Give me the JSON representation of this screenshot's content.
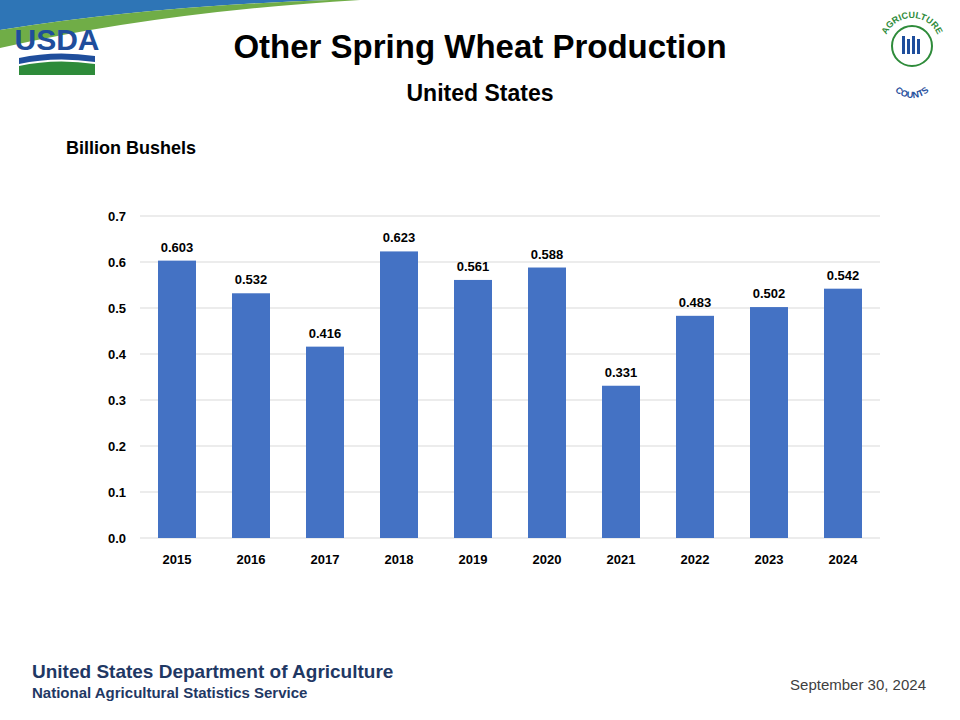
{
  "chart_data": {
    "type": "bar",
    "title": "Other Spring Wheat Production",
    "subtitle": "United States",
    "y_label": "Billion Bushels",
    "categories": [
      "2015",
      "2016",
      "2017",
      "2018",
      "2019",
      "2020",
      "2021",
      "2022",
      "2023",
      "2024"
    ],
    "values": [
      0.603,
      0.532,
      0.416,
      0.623,
      0.561,
      0.588,
      0.331,
      0.483,
      0.502,
      0.542
    ],
    "color": "#4472c4",
    "ylim": [
      0,
      0.7
    ],
    "yticks": [
      {
        "value": 0,
        "label": "0.0"
      },
      0.1,
      0.2,
      0.3,
      0.4,
      0.5,
      0.6,
      0.7
    ],
    "grid": true,
    "data_labels": true
  },
  "header": {
    "logo_left": "USDA",
    "logo_right": [
      "AGRICULTURE",
      "COUNTS"
    ]
  },
  "footer": {
    "agency": "United States Department of Agriculture",
    "service": "National Agricultural Statistics Service",
    "date": "September 30, 2024"
  }
}
